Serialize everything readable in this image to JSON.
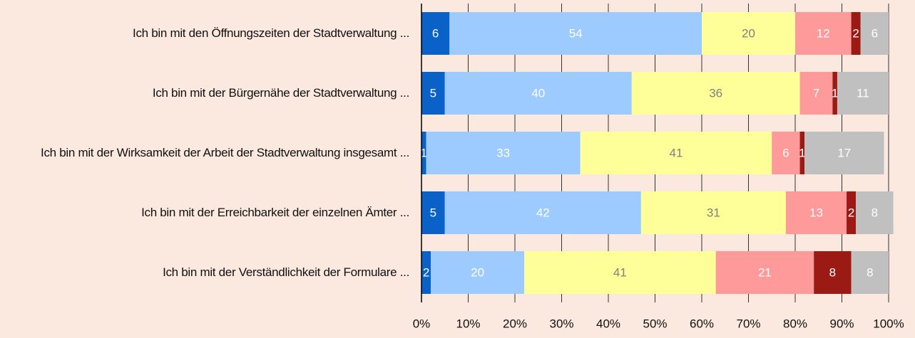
{
  "chart_data": {
    "type": "stacked_barh",
    "categories": [
      "Ich bin mit den Öffnungszeiten der Stadtverwaltung ...",
      "Ich bin mit der Bürgernähe der Stadtverwaltung ...",
      "Ich bin mit der Wirksamkeit der Arbeit der Stadtverwaltung insgesamt ...",
      "Ich bin mit der Erreichbarkeit der einzelnen Ämter ...",
      "Ich bin mit der Verständlichkeit der Formulare ..."
    ],
    "series": [
      {
        "color": "#0a62c9",
        "label_color": "#ffffff",
        "values": [
          6,
          5,
          1,
          5,
          2
        ]
      },
      {
        "color": "#9ecbff",
        "label_color": "#ffffff",
        "values": [
          54,
          40,
          33,
          42,
          20
        ]
      },
      {
        "color": "#ffff99",
        "label_color": "#808080",
        "values": [
          20,
          36,
          41,
          31,
          41
        ]
      },
      {
        "color": "#ff9a9a",
        "label_color": "#ffffff",
        "values": [
          12,
          7,
          6,
          13,
          21
        ]
      },
      {
        "color": "#9b1b14",
        "label_color": "#ffffff",
        "values": [
          2,
          1,
          1,
          2,
          8
        ]
      },
      {
        "color": "#c0c0c0",
        "label_color": "#ffffff",
        "values": [
          6,
          11,
          17,
          8,
          8
        ]
      }
    ],
    "xlim": [
      0,
      100
    ],
    "xticks": [
      {
        "value": 0,
        "label": "0%"
      },
      {
        "value": 10,
        "label": "10%"
      },
      {
        "value": 20,
        "label": "20%"
      },
      {
        "value": 30,
        "label": "30%"
      },
      {
        "value": 40,
        "label": "40%"
      },
      {
        "value": 50,
        "label": "50%"
      },
      {
        "value": 60,
        "label": "60%"
      },
      {
        "value": 70,
        "label": "70%"
      },
      {
        "value": 80,
        "label": "80%"
      },
      {
        "value": 90,
        "label": "90%"
      },
      {
        "value": 100,
        "label": "100%"
      }
    ],
    "grid": true
  }
}
